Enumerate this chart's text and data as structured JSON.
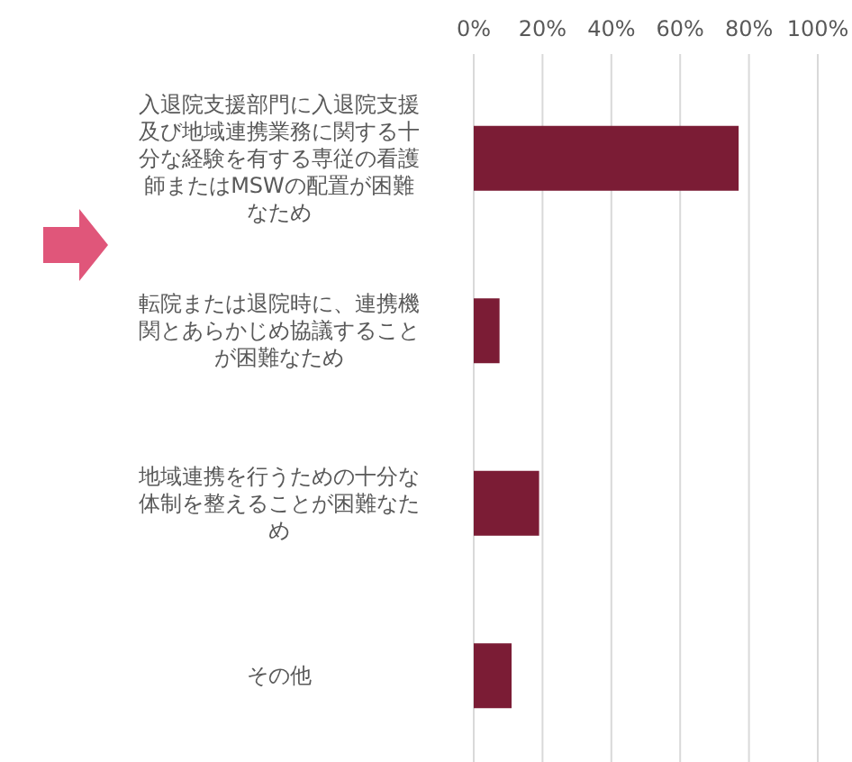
{
  "chart_data": {
    "type": "bar",
    "orientation": "horizontal",
    "categories": [
      "入退院支援部門に入退院支援及び地域連携業務に関する十分な経験を有する専従の看護師またはMSWの配置が困難なため",
      "転院または退院時に、連携機関とあらかじめ協議することが困難なため",
      "地域連携を行うための十分な体制を整えることが困難なため",
      "その他"
    ],
    "values": [
      77,
      7.5,
      19,
      11
    ],
    "color": "#7b1c35",
    "xlim": [
      0,
      100
    ],
    "xticks": [
      {
        "value": 0,
        "label": "0%"
      },
      {
        "value": 20,
        "label": "20%"
      },
      {
        "value": 40,
        "label": "40%"
      },
      {
        "value": 60,
        "label": "60%"
      },
      {
        "value": 80,
        "label": "80%"
      },
      {
        "value": 100,
        "label": "100%"
      }
    ],
    "grid": "x"
  }
}
